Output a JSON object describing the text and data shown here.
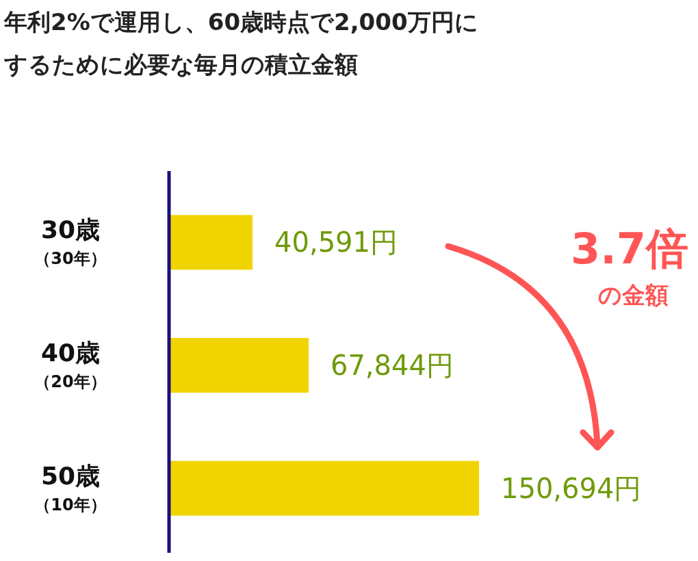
{
  "chart_data": {
    "type": "bar",
    "orientation": "horizontal",
    "title": "年利2%で運用し、60歳時点で2,000万円にするために必要な毎月の積立金額",
    "categories": [
      "30歳（30年）",
      "40歳（20年）",
      "50歳（10年）"
    ],
    "values": [
      40591,
      67844,
      150694
    ],
    "value_labels": [
      "40,591円",
      "67,844円",
      "150,694円"
    ],
    "color": "#f0d400",
    "annotations": [
      "3.7倍",
      "の金額"
    ],
    "tick_labels": "y"
  }
}
